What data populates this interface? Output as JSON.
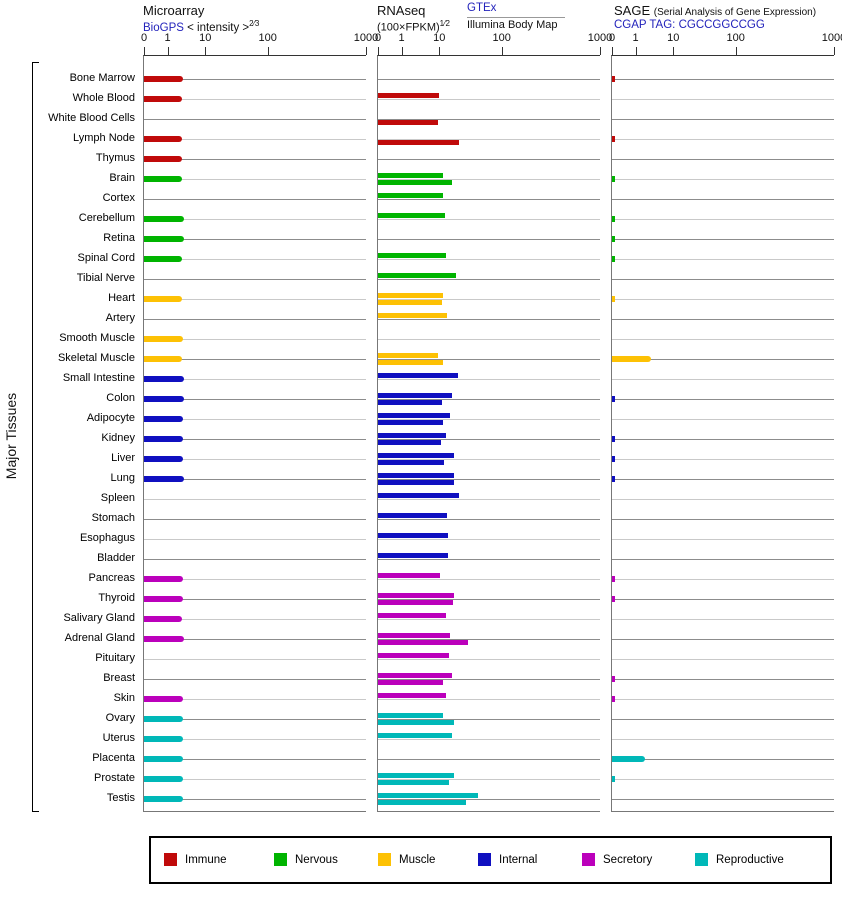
{
  "y_axis_label": "Major Tissues",
  "panels": {
    "microarray": {
      "title": "Microarray",
      "source_link": "BioGPS",
      "subtitle": "< intensity >",
      "exponent": "2⁄3"
    },
    "rnaseq": {
      "title": "RNAseq",
      "subtitle": "(100×FPKM)",
      "exponent": "1⁄2",
      "source_link": "GTEx",
      "source2": "Illumina Body Map"
    },
    "sage": {
      "title": "SAGE",
      "title_note": "(Serial Analysis of Gene Expression)",
      "source_link": "CGAP",
      "tag_label": "TAG: CGCCGGCCGG"
    }
  },
  "axis": {
    "ticks": [
      {
        "label": "0",
        "f": 0
      },
      {
        "label": "1",
        "f": 0.106
      },
      {
        "label": "10",
        "f": 0.276
      },
      {
        "label": "100",
        "f": 0.557
      },
      {
        "label": "1000",
        "f": 1.0
      }
    ]
  },
  "groups": {
    "immune": {
      "label": "Immune",
      "color": "#c00a0a"
    },
    "nervous": {
      "label": "Nervous",
      "color": "#00b400"
    },
    "muscle": {
      "label": "Muscle",
      "color": "#fdc104"
    },
    "internal": {
      "label": "Internal",
      "color": "#1010c0"
    },
    "secretory": {
      "label": "Secretory",
      "color": "#bb00bb"
    },
    "reproductive": {
      "label": "Reproductive",
      "color": "#00b8b8"
    }
  },
  "legend_order": [
    "immune",
    "nervous",
    "muscle",
    "internal",
    "secretory",
    "reproductive"
  ],
  "chart_data": {
    "type": "bar",
    "orientation": "horizontal",
    "x_scale": "compressed power-like scale, ticks 0/1/10/100/1000 at fractions 0/0.106/0.276/0.557/1.0",
    "x_ticks": [
      0,
      1,
      10,
      100,
      1000
    ],
    "grid": "alternating gray row lines",
    "categories": [
      "Bone Marrow",
      "Whole Blood",
      "White Blood Cells",
      "Lymph Node",
      "Thymus",
      "Brain",
      "Cortex",
      "Cerebellum",
      "Retina",
      "Spinal Cord",
      "Tibial Nerve",
      "Heart",
      "Artery",
      "Smooth Muscle",
      "Skeletal Muscle",
      "Small Intestine",
      "Colon",
      "Adipocyte",
      "Kidney",
      "Liver",
      "Lung",
      "Spleen",
      "Stomach",
      "Esophagus",
      "Bladder",
      "Pancreas",
      "Thyroid",
      "Salivary Gland",
      "Adrenal Gland",
      "Pituitary",
      "Breast",
      "Skin",
      "Ovary",
      "Uterus",
      "Placenta",
      "Prostate",
      "Testis"
    ],
    "tissue_groups": [
      "immune",
      "immune",
      "immune",
      "immune",
      "immune",
      "nervous",
      "nervous",
      "nervous",
      "nervous",
      "nervous",
      "nervous",
      "muscle",
      "muscle",
      "muscle",
      "muscle",
      "internal",
      "internal",
      "internal",
      "internal",
      "internal",
      "internal",
      "internal",
      "internal",
      "internal",
      "internal",
      "secretory",
      "secretory",
      "secretory",
      "secretory",
      "secretory",
      "secretory",
      "secretory",
      "reproductive",
      "reproductive",
      "reproductive",
      "reproductive",
      "reproductive"
    ],
    "series": [
      {
        "name": "Microarray (BioGPS)",
        "panel": "microarray",
        "values": [
          2.5,
          2.45,
          null,
          2.45,
          2.45,
          2.45,
          null,
          2.7,
          2.7,
          2.45,
          null,
          2.45,
          null,
          2.5,
          2.45,
          2.8,
          2.7,
          2.5,
          2.5,
          2.5,
          2.7,
          null,
          null,
          null,
          null,
          2.5,
          2.5,
          2.45,
          2.7,
          null,
          null,
          2.5,
          2.6,
          2.6,
          2.5,
          2.5,
          2.6
        ]
      },
      {
        "name": "RNAseq (GTEx)",
        "panel": "rnaseq",
        "values": [
          null,
          10,
          null,
          null,
          null,
          11.6,
          11.6,
          12.3,
          null,
          12.7,
          18.6,
          11.3,
          13.5,
          null,
          9.3,
          20,
          16.2,
          14.9,
          12.8,
          17.4,
          17.3,
          21,
          13.5,
          13.9,
          14,
          10.2,
          17.1,
          12.7,
          14.9,
          14.4,
          16.2,
          13,
          11.3,
          16.2,
          null,
          17.1,
          42
        ]
      },
      {
        "name": "RNAseq (Illumina Body Map)",
        "panel": "rnaseq",
        "values": [
          null,
          null,
          9.5,
          21,
          null,
          16,
          null,
          null,
          null,
          null,
          null,
          10.9,
          null,
          null,
          11.6,
          null,
          10.9,
          11.3,
          10.8,
          11.9,
          17.1,
          null,
          null,
          null,
          null,
          null,
          16.4,
          null,
          29,
          null,
          11.6,
          null,
          17.1,
          null,
          null,
          14.4,
          27
        ]
      },
      {
        "name": "SAGE (CGAP)",
        "panel": "sage",
        "values": [
          0.1,
          null,
          null,
          0.1,
          null,
          0.1,
          null,
          0.1,
          0.1,
          0.1,
          null,
          0.1,
          null,
          null,
          2.6,
          null,
          0.1,
          null,
          0.1,
          0.1,
          0.1,
          null,
          null,
          null,
          null,
          0.1,
          0.1,
          null,
          null,
          null,
          0.1,
          0.1,
          null,
          null,
          1.8,
          0.1,
          null
        ]
      }
    ]
  }
}
